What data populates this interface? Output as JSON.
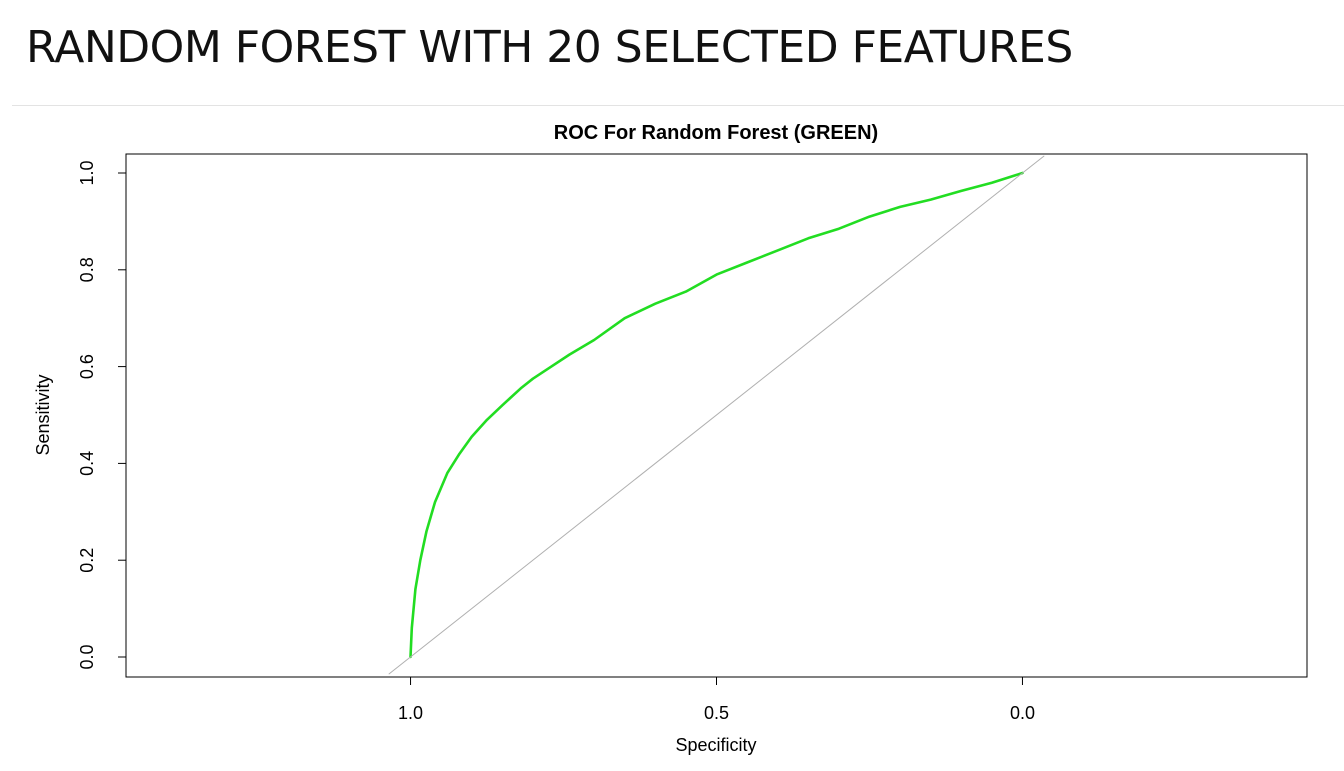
{
  "page": {
    "heading": "RANDOM FOREST WITH 20 SELECTED FEATURES"
  },
  "chart_data": {
    "type": "line",
    "title": "ROC For Random Forest (GREEN)",
    "xlabel": "Specificity",
    "ylabel": "Sensitivity",
    "x_reversed": true,
    "xlim": [
      1.465,
      -0.465
    ],
    "ylim": [
      0.0,
      1.0
    ],
    "xticks": [
      1.0,
      0.5,
      0.0
    ],
    "xtick_labels": [
      "1.0",
      "0.5",
      "0.0"
    ],
    "yticks": [
      0.0,
      0.2,
      0.4,
      0.6,
      0.8,
      1.0
    ],
    "ytick_labels": [
      "0.0",
      "0.2",
      "0.4",
      "0.6",
      "0.8",
      "1.0"
    ],
    "grid": false,
    "colors": {
      "roc": "#22dd22",
      "reference": "#b0b0b0",
      "axes": "#000000"
    },
    "series": [
      {
        "name": "Random Forest",
        "role": "roc-curve",
        "x": [
          1.0,
          0.998,
          0.992,
          0.984,
          0.974,
          0.96,
          0.94,
          0.92,
          0.9,
          0.875,
          0.85,
          0.82,
          0.8,
          0.77,
          0.74,
          0.7,
          0.65,
          0.6,
          0.55,
          0.5,
          0.45,
          0.4,
          0.35,
          0.3,
          0.25,
          0.2,
          0.15,
          0.1,
          0.05,
          0.0
        ],
        "y": [
          0.0,
          0.06,
          0.14,
          0.2,
          0.26,
          0.32,
          0.38,
          0.42,
          0.455,
          0.49,
          0.52,
          0.555,
          0.575,
          0.6,
          0.625,
          0.655,
          0.7,
          0.73,
          0.755,
          0.79,
          0.815,
          0.84,
          0.865,
          0.885,
          0.91,
          0.93,
          0.945,
          0.963,
          0.98,
          1.0
        ]
      },
      {
        "role": "reference-line",
        "x": [
          1.035,
          -0.035
        ],
        "y": [
          -0.035,
          1.035
        ]
      }
    ]
  }
}
